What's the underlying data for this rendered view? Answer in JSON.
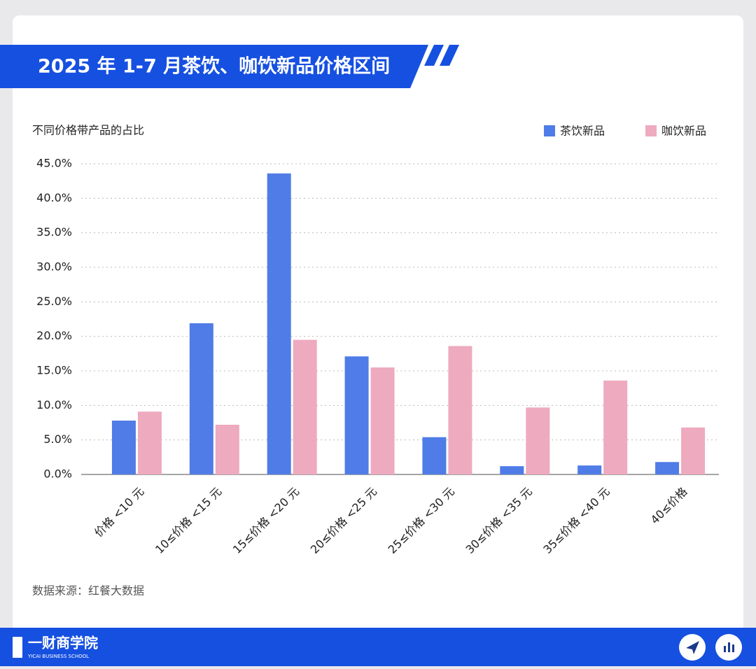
{
  "chart_data": {
    "type": "bar",
    "title": "2025 年 1-7 月茶饮、咖饮新品价格区间",
    "y_label": "不同价格带产品的占比",
    "source": "数据来源：红餐大数据",
    "categories": [
      "价格 <10 元",
      "10≤价格 <15 元",
      "15≤价格 <20 元",
      "20≤价格 <25 元",
      "25≤价格 <30 元",
      "30≤价格 <35 元",
      "35≤价格 <40 元",
      "40≤价格"
    ],
    "series": [
      {
        "name": "茶饮新品",
        "color": "#4f7ce6",
        "values": [
          7.8,
          21.9,
          43.6,
          17.1,
          5.4,
          1.2,
          1.3,
          1.8
        ]
      },
      {
        "name": "咖饮新品",
        "color": "#eeaabf",
        "values": [
          9.1,
          7.2,
          19.5,
          15.5,
          18.6,
          9.7,
          13.6,
          6.8
        ]
      }
    ],
    "ylim": [
      0,
      45
    ],
    "yticks": [
      {
        "value": 0,
        "label": "0.0%"
      },
      {
        "value": 5,
        "label": "5.0%"
      },
      {
        "value": 10,
        "label": "10.0%"
      },
      {
        "value": 15,
        "label": "15.0%"
      },
      {
        "value": 20,
        "label": "20.0%"
      },
      {
        "value": 25,
        "label": "25.0%"
      },
      {
        "value": 30,
        "label": "30.0%"
      },
      {
        "value": 35,
        "label": "35.0%"
      },
      {
        "value": 40,
        "label": "40.0%"
      },
      {
        "value": 45,
        "label": "45.0%"
      }
    ],
    "grid": true,
    "legend": "top-right"
  },
  "footer": {
    "logo": "一财商学院",
    "logo_subtitle": "YICAI BUSINESS SCHOOL"
  }
}
